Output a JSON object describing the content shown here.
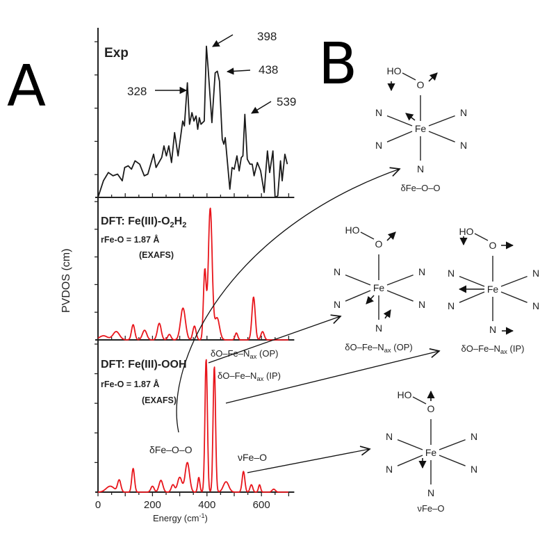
{
  "panel_labels": {
    "a": "A",
    "b": "B"
  },
  "chart_data": [
    {
      "type": "line",
      "panel": "Exp",
      "title": "Exp",
      "color": "#1a1a1a",
      "xlim": [
        0,
        700
      ],
      "points": [
        [
          0,
          0
        ],
        [
          20,
          0.1
        ],
        [
          38,
          0.15
        ],
        [
          55,
          0.13
        ],
        [
          72,
          0.14
        ],
        [
          89,
          0.1
        ],
        [
          98,
          0.18
        ],
        [
          111,
          0.19
        ],
        [
          123,
          0.17
        ],
        [
          136,
          0.22
        ],
        [
          153,
          0.2
        ],
        [
          170,
          0.13
        ],
        [
          183,
          0.14
        ],
        [
          204,
          0.26
        ],
        [
          213,
          0.18
        ],
        [
          234,
          0.24
        ],
        [
          242,
          0.31
        ],
        [
          251,
          0.25
        ],
        [
          260,
          0.31
        ],
        [
          270,
          0.21
        ],
        [
          281,
          0.39
        ],
        [
          294,
          0.25
        ],
        [
          311,
          0.46
        ],
        [
          317,
          0.43
        ],
        [
          328,
          0.69
        ],
        [
          336,
          0.44
        ],
        [
          345,
          0.51
        ],
        [
          352,
          0.46
        ],
        [
          360,
          0.49
        ],
        [
          366,
          0.41
        ],
        [
          372,
          0.48
        ],
        [
          378,
          0.44
        ],
        [
          390,
          0.46
        ],
        [
          398,
          0.91
        ],
        [
          404,
          0.78
        ],
        [
          418,
          0.45
        ],
        [
          430,
          0.75
        ],
        [
          438,
          0.76
        ],
        [
          446,
          0.7
        ],
        [
          456,
          0.35
        ],
        [
          462,
          0.32
        ],
        [
          467,
          0.36
        ],
        [
          472,
          0.27
        ],
        [
          484,
          0.05
        ],
        [
          492,
          0.18
        ],
        [
          500,
          0.17
        ],
        [
          510,
          0.25
        ],
        [
          518,
          0.16
        ],
        [
          526,
          0.24
        ],
        [
          532,
          0.25
        ],
        [
          539,
          0.5
        ],
        [
          548,
          0.23
        ],
        [
          558,
          0.2
        ],
        [
          566,
          0.2
        ],
        [
          573,
          0.13
        ],
        [
          585,
          0.21
        ],
        [
          597,
          0.16
        ],
        [
          610,
          0.03
        ],
        [
          622,
          0.28
        ],
        [
          630,
          0.15
        ],
        [
          642,
          0.28
        ],
        [
          650,
          0.0
        ],
        [
          660,
          0.01
        ],
        [
          670,
          0.22
        ],
        [
          676,
          0.1
        ],
        [
          686,
          0.26
        ],
        [
          695,
          0.2
        ]
      ],
      "annotations": [
        "328",
        "398",
        "438",
        "539"
      ]
    },
    {
      "type": "line",
      "panel": "DFT-O2H2",
      "title_main": "DFT: Fe(III)-O",
      "title_sub1": "2",
      "title_mid": "H",
      "title_sub2": "2",
      "distance": "rFe-O = 1.87 Å",
      "method": "(EXAFS)",
      "color": "#e8151b",
      "xlim": [
        0,
        700
      ],
      "peaks": [
        [
          412,
          0.95,
          7
        ],
        [
          392,
          0.5,
          5
        ],
        [
          437,
          0.16,
          9
        ],
        [
          312,
          0.23,
          9
        ],
        [
          354,
          0.1,
          6
        ],
        [
          571,
          0.31,
          6
        ],
        [
          508,
          0.05,
          5
        ],
        [
          604,
          0.06,
          6
        ],
        [
          67,
          0.06,
          12
        ],
        [
          129,
          0.11,
          6
        ],
        [
          171,
          0.07,
          8
        ],
        [
          225,
          0.12,
          7
        ],
        [
          262,
          0.04,
          6
        ],
        [
          20,
          0.03,
          15
        ]
      ]
    },
    {
      "type": "line",
      "panel": "DFT-OOH",
      "title": "DFT: Fe(III)-OOH",
      "distance": "rFe-O = 1.87 Å",
      "method": "(EXAFS)",
      "color": "#e8151b",
      "xlim": [
        0,
        700
      ],
      "xticks": [
        "0",
        "200",
        "400",
        "600"
      ],
      "xlabel": "Energy (cm",
      "xlabel_sup": "-1",
      "xlabel_end": ")",
      "ylabel": "PVDOS (cm)",
      "peaks": [
        [
          397,
          0.9,
          4.5
        ],
        [
          427,
          0.85,
          4.5
        ],
        [
          328,
          0.2,
          8
        ],
        [
          370,
          0.1,
          4
        ],
        [
          300,
          0.1,
          8
        ],
        [
          129,
          0.16,
          5
        ],
        [
          78,
          0.08,
          6
        ],
        [
          231,
          0.08,
          7
        ],
        [
          200,
          0.04,
          6
        ],
        [
          275,
          0.05,
          6
        ],
        [
          470,
          0.07,
          10
        ],
        [
          534,
          0.14,
          5
        ],
        [
          563,
          0.05,
          5
        ],
        [
          593,
          0.05,
          4
        ],
        [
          645,
          0.02,
          6
        ],
        [
          45,
          0.04,
          15
        ]
      ],
      "annotations": {
        "op": "δO–Fe–N",
        "op_sub": "ax",
        "op_end": " (OP)",
        "ip": "δO–Fe–N",
        "ip_sub": "ax",
        "ip_end": " (IP)",
        "bend": "δFe–O–O",
        "stretch": "νFe–O"
      }
    }
  ],
  "structures": [
    {
      "caption": "δFe–O–O",
      "ho": "HO",
      "o": "O",
      "fe": "Fe",
      "n": "N"
    },
    {
      "caption": "δO–Fe–N",
      "caption_sub": "ax",
      "caption_end": " (OP)",
      "ho": "HO",
      "o": "O",
      "fe": "Fe",
      "n": "N"
    },
    {
      "caption": "δO–Fe–N",
      "caption_sub": "ax",
      "caption_end": " (IP)",
      "ho": "HO",
      "o": "O",
      "fe": "Fe",
      "n": "N"
    },
    {
      "caption": "νFe–O",
      "ho": "HO",
      "o": "O",
      "fe": "Fe",
      "n": "N"
    }
  ]
}
